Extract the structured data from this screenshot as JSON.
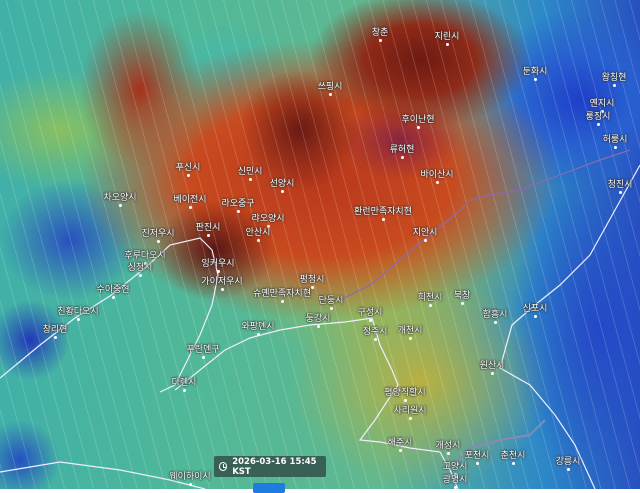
{
  "timestamp": "2026-03-16 15:45 KST",
  "icons": {
    "time": "clock-icon"
  },
  "cities": [
    {
      "name": "창춘"
    },
    {
      "name": "지린시"
    },
    {
      "name": "쓰핑시"
    },
    {
      "name": "후이난현"
    },
    {
      "name": "류허현"
    },
    {
      "name": "바이산시"
    },
    {
      "name": "둔화시"
    },
    {
      "name": "왕칭현"
    },
    {
      "name": "옌지시"
    },
    {
      "name": "룽징시"
    },
    {
      "name": "허룽시"
    },
    {
      "name": "청진시"
    },
    {
      "name": "푸신시"
    },
    {
      "name": "신민시"
    },
    {
      "name": "선양시"
    },
    {
      "name": "베이전시"
    },
    {
      "name": "라오중구"
    },
    {
      "name": "랴오양시"
    },
    {
      "name": "판진시"
    },
    {
      "name": "안산시"
    },
    {
      "name": "잉커우시"
    },
    {
      "name": "가이저우시"
    },
    {
      "name": "슈옌만족자치현"
    },
    {
      "name": "펑청시"
    },
    {
      "name": "단둥시"
    },
    {
      "name": "둥강시"
    },
    {
      "name": "와팡뎬시"
    },
    {
      "name": "환런만족자치현"
    },
    {
      "name": "지안시"
    },
    {
      "name": "차오양시"
    },
    {
      "name": "진저우시"
    },
    {
      "name": "후루다오시"
    },
    {
      "name": "싱청시"
    },
    {
      "name": "수이중현"
    },
    {
      "name": "친황다오시"
    },
    {
      "name": "창리현"
    },
    {
      "name": "푸란뎬구"
    },
    {
      "name": "다롄시"
    },
    {
      "name": "희천시"
    },
    {
      "name": "북창"
    },
    {
      "name": "구성시"
    },
    {
      "name": "정주시"
    },
    {
      "name": "개천시"
    },
    {
      "name": "함흥시"
    },
    {
      "name": "신포시"
    },
    {
      "name": "원산시"
    },
    {
      "name": "평양직할시"
    },
    {
      "name": "사리원시"
    },
    {
      "name": "해주시"
    },
    {
      "name": "개성시"
    },
    {
      "name": "포천시"
    },
    {
      "name": "춘천시"
    },
    {
      "name": "강릉시"
    },
    {
      "name": "고양시"
    },
    {
      "name": "광명시"
    },
    {
      "name": "웨이하이시"
    }
  ]
}
